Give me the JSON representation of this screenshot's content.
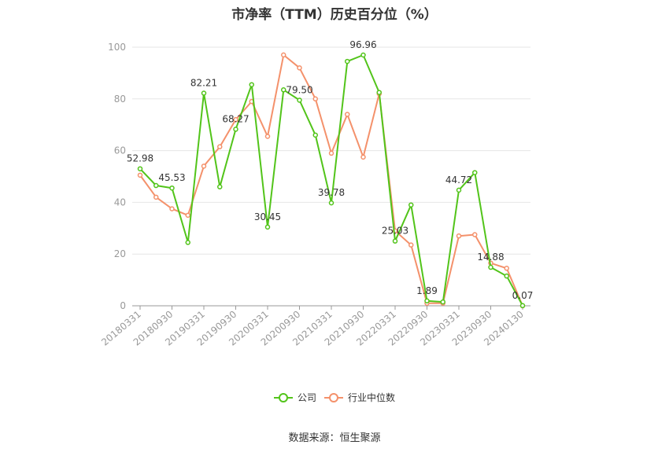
{
  "title": "市净率（TTM）历史百分位（%）",
  "source": "数据来源：恒生聚源",
  "colors": {
    "company": "#52c41a",
    "industry": "#f4916b",
    "grid": "#e6e6e6",
    "axis": "#999999"
  },
  "chart_data": {
    "type": "line",
    "title": "市净率（TTM）历史百分位（%）",
    "ylim": [
      0,
      100
    ],
    "yticks": [
      0,
      20,
      40,
      60,
      80,
      100
    ],
    "grid": true,
    "legend": "bottom-center",
    "x": [
      "20180331",
      "20180630",
      "20180930",
      "20181231",
      "20190331",
      "20190630",
      "20190930",
      "20191231",
      "20200331",
      "20200630",
      "20200930",
      "20201231",
      "20210331",
      "20210630",
      "20210930",
      "20211231",
      "20220331",
      "20220630",
      "20220930",
      "20221231",
      "20230331",
      "20230630",
      "20230930",
      "20231231",
      "20240130"
    ],
    "xtick_labels": [
      "20180331",
      "20180930",
      "20190331",
      "20190930",
      "20200331",
      "20200930",
      "20210331",
      "20210930",
      "20220331",
      "20220930",
      "20230331",
      "20230930",
      "20240130"
    ],
    "xtick_indices": [
      0,
      2,
      4,
      6,
      8,
      10,
      12,
      14,
      16,
      18,
      20,
      22,
      24
    ],
    "series": [
      {
        "name": "公司",
        "values": [
          52.98,
          46.5,
          45.53,
          24.5,
          82.21,
          46.0,
          68.27,
          85.5,
          30.45,
          83.5,
          79.5,
          66.0,
          39.78,
          94.5,
          96.96,
          82.5,
          25.03,
          39.0,
          1.89,
          1.5,
          44.72,
          51.5,
          14.88,
          11.5,
          0.07
        ],
        "labels": {
          "0": "52.98",
          "2": "45.53",
          "4": "82.21",
          "6": "68.27",
          "8": "30.45",
          "10": "79.50",
          "12": "39.78",
          "14": "96.96",
          "16": "25.03",
          "18": "1.89",
          "20": "44.72",
          "22": "14.88",
          "24": "0.07"
        }
      },
      {
        "name": "行业中位数",
        "values": [
          50.5,
          42.0,
          37.5,
          35.0,
          54.0,
          61.5,
          72.0,
          79.0,
          65.5,
          97.0,
          92.0,
          80.0,
          59.0,
          74.0,
          57.5,
          82.0,
          29.0,
          23.5,
          1.0,
          1.0,
          27.0,
          27.5,
          16.5,
          14.5,
          0.0
        ]
      }
    ]
  }
}
